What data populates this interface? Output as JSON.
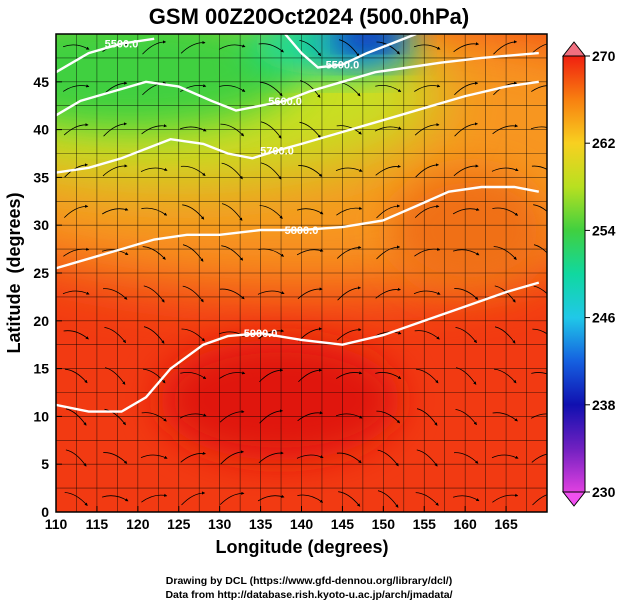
{
  "chart_data": {
    "type": "heatmap",
    "title": "GSM 00Z20Oct2024 (500.0hPa)",
    "xlabel": "Longitude (degrees)",
    "ylabel": "Latitude  (degrees)",
    "xlim": [
      110,
      170
    ],
    "ylim": [
      0,
      50
    ],
    "x_ticks": [
      110,
      115,
      120,
      125,
      130,
      135,
      140,
      145,
      150,
      155,
      160,
      165
    ],
    "y_ticks": [
      0,
      5,
      10,
      15,
      20,
      25,
      30,
      35,
      40,
      45
    ],
    "colorbar": {
      "min": 230,
      "max": 270,
      "ticks": [
        270,
        262,
        254,
        246,
        238,
        230
      ],
      "colors": [
        "#e040e0",
        "#1010b0",
        "#1560e0",
        "#20c8e8",
        "#10d8a0",
        "#40d040",
        "#b8e020",
        "#f8d020",
        "#f88010",
        "#f02010",
        "#e01810"
      ]
    },
    "contours": [
      {
        "label": "5900.0",
        "points": [
          [
            110,
            11.2
          ],
          [
            114,
            10.5
          ],
          [
            118,
            10.5
          ],
          [
            121,
            12
          ],
          [
            124,
            15
          ],
          [
            128,
            17.5
          ],
          [
            131,
            18.4
          ],
          [
            135,
            18.7
          ],
          [
            140,
            18
          ],
          [
            145,
            17.5
          ],
          [
            150,
            18.5
          ],
          [
            155,
            20
          ],
          [
            160,
            21.5
          ],
          [
            165,
            23
          ],
          [
            169,
            24
          ]
        ]
      },
      {
        "label": "5800.0",
        "points": [
          [
            110,
            25.5
          ],
          [
            114,
            26.5
          ],
          [
            118,
            27.5
          ],
          [
            122,
            28.5
          ],
          [
            126,
            29
          ],
          [
            130,
            29
          ],
          [
            135,
            29.5
          ],
          [
            140,
            29.5
          ],
          [
            145,
            29.8
          ],
          [
            150,
            30.5
          ],
          [
            154,
            32
          ],
          [
            158,
            33.5
          ],
          [
            162,
            34
          ],
          [
            166,
            34
          ],
          [
            169,
            33.5
          ]
        ]
      },
      {
        "label": "5700.0",
        "points": [
          [
            110,
            35.5
          ],
          [
            114,
            36
          ],
          [
            118,
            37
          ],
          [
            121,
            38
          ],
          [
            124,
            39
          ],
          [
            128,
            38.5
          ],
          [
            131,
            37.5
          ],
          [
            134,
            37
          ],
          [
            137,
            37.8
          ],
          [
            140,
            38.5
          ],
          [
            144,
            39.5
          ],
          [
            148,
            40.5
          ],
          [
            152,
            41.5
          ],
          [
            156,
            42.5
          ],
          [
            160,
            43.5
          ],
          [
            165,
            44.5
          ],
          [
            169,
            45
          ]
        ]
      },
      {
        "label": "5600.0",
        "points": [
          [
            110,
            41.5
          ],
          [
            113,
            43
          ],
          [
            117,
            44
          ],
          [
            121,
            45
          ],
          [
            125,
            44.5
          ],
          [
            129,
            43
          ],
          [
            132,
            42
          ],
          [
            135,
            42.5
          ],
          [
            138,
            43
          ],
          [
            141,
            44
          ],
          [
            145,
            45
          ],
          [
            149,
            46
          ],
          [
            153,
            46.5
          ],
          [
            157,
            47
          ],
          [
            162,
            47.5
          ],
          [
            169,
            48
          ]
        ]
      },
      {
        "label": "5500.0",
        "points": [
          [
            110,
            46
          ],
          [
            114,
            48
          ],
          [
            118,
            49
          ],
          [
            122,
            49.5
          ]
        ]
      },
      {
        "label": "5500.0",
        "points": [
          [
            138,
            50
          ],
          [
            140,
            48
          ],
          [
            142,
            46.5
          ],
          [
            145,
            46.8
          ],
          [
            148,
            48
          ],
          [
            151,
            49
          ],
          [
            154,
            50
          ]
        ]
      }
    ]
  },
  "credits": {
    "line1": "Drawing by DCL (https://www.gfd-dennou.org/library/dcl/)",
    "line2": "Data from http://database.rish.kyoto-u.ac.jp/arch/jmadata/"
  }
}
